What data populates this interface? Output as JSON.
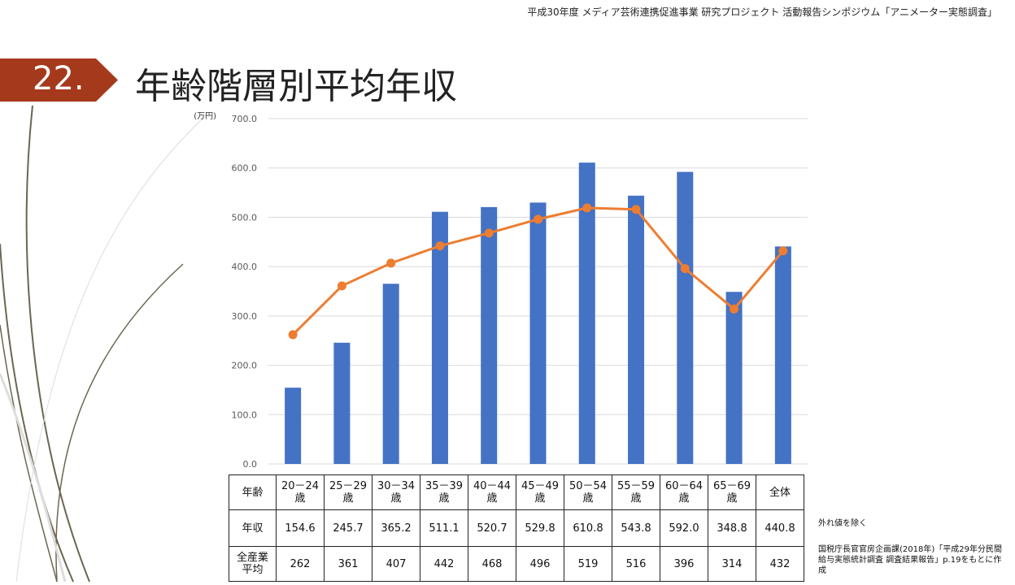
{
  "header": "平成30年度 メディア芸術連携促進事業 研究プロジェクト 活動報告シンポジウム「アニメーター実態調査」",
  "slide_number": "22.",
  "title": "年齢階層別平均年収",
  "colors": {
    "badge": "#A5391C",
    "bar": "#4472C4",
    "line": "#ED7D31"
  },
  "chart_data": {
    "type": "bar+line",
    "ylabel": "(万円)",
    "ylim": [
      0,
      700
    ],
    "yticks": [
      "0.0",
      "100.0",
      "200.0",
      "300.0",
      "400.0",
      "500.0",
      "600.0",
      "700.0"
    ],
    "grid": true,
    "categories": [
      "20－24歳",
      "25－29歳",
      "30－34歳",
      "35－39歳",
      "40－44歳",
      "45－49歳",
      "50－54歳",
      "55－59歳",
      "60－64歳",
      "65－69歳",
      "全体"
    ],
    "series": [
      {
        "name": "年収",
        "type": "bar",
        "values": [
          154.6,
          245.7,
          365.2,
          511.1,
          520.7,
          529.8,
          610.8,
          543.8,
          592.0,
          348.8,
          440.8
        ]
      },
      {
        "name": "全産業平均",
        "type": "line",
        "values": [
          262,
          361,
          407,
          442,
          468,
          496,
          519,
          516,
          396,
          314,
          432
        ]
      }
    ]
  },
  "table": {
    "row_headers": [
      "年齢",
      "年収",
      "全産業 平均"
    ],
    "age_labels": [
      [
        "20－24",
        "歳"
      ],
      [
        "25－29",
        "歳"
      ],
      [
        "30－34",
        "歳"
      ],
      [
        "35－39",
        "歳"
      ],
      [
        "40－44",
        "歳"
      ],
      [
        "45－49",
        "歳"
      ],
      [
        "50－54",
        "歳"
      ],
      [
        "55－59",
        "歳"
      ],
      [
        "60－64",
        "歳"
      ],
      [
        "65－69",
        "歳"
      ],
      [
        "全体",
        ""
      ]
    ],
    "income": [
      "154.6",
      "245.7",
      "365.2",
      "511.1",
      "520.7",
      "529.8",
      "610.8",
      "543.8",
      "592.0",
      "348.8",
      "440.8"
    ],
    "industry_avg": [
      "262",
      "361",
      "407",
      "442",
      "468",
      "496",
      "519",
      "516",
      "396",
      "314",
      "432"
    ]
  },
  "notes": {
    "outlier": "外れ値を除く",
    "source": "国税庁長官官房企画課(2018年)「平成29年分民間給与実態統計調査 調査結果報告」p.19をもとに作成"
  }
}
